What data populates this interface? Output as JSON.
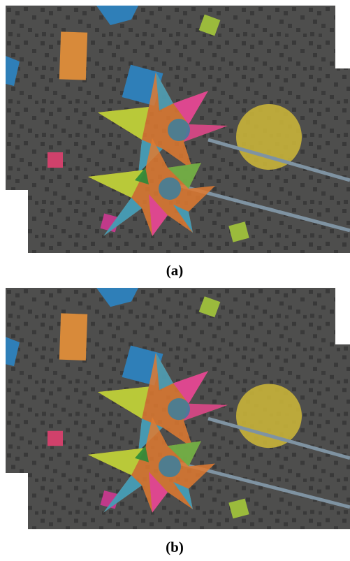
{
  "figure": {
    "subfigures": [
      {
        "label": "(a)"
      },
      {
        "label": "(b)"
      }
    ]
  }
}
